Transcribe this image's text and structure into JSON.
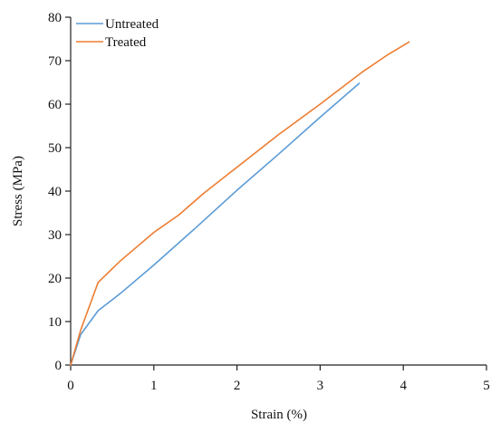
{
  "chart_data": {
    "type": "line",
    "title": "",
    "xlabel": "Strain (%)",
    "ylabel": "Stress (MPa)",
    "xlim": [
      0,
      5
    ],
    "ylim": [
      0,
      80
    ],
    "xticks": [
      0,
      1,
      2,
      3,
      4,
      5
    ],
    "yticks": [
      0,
      10,
      20,
      30,
      40,
      50,
      60,
      70,
      80
    ],
    "grid": false,
    "legend_position": "top-left",
    "series": [
      {
        "name": "Untreated",
        "color": "#5b9bd5",
        "x": [
          0,
          0.12,
          0.33,
          0.6,
          1.0,
          1.5,
          2.0,
          2.5,
          3.0,
          3.47
        ],
        "y": [
          0,
          7,
          12.5,
          16.5,
          23,
          31.5,
          40.2,
          48.5,
          57,
          64.8
        ]
      },
      {
        "name": "Treated",
        "color": "#ed7d31",
        "x": [
          0,
          0.12,
          0.33,
          0.6,
          1.0,
          1.3,
          1.6,
          2.0,
          2.5,
          3.0,
          3.5,
          3.8,
          4.07
        ],
        "y": [
          0,
          8,
          19,
          24,
          30.5,
          34.5,
          39.5,
          45.5,
          53,
          60,
          67.3,
          71.2,
          74.3
        ]
      }
    ]
  }
}
